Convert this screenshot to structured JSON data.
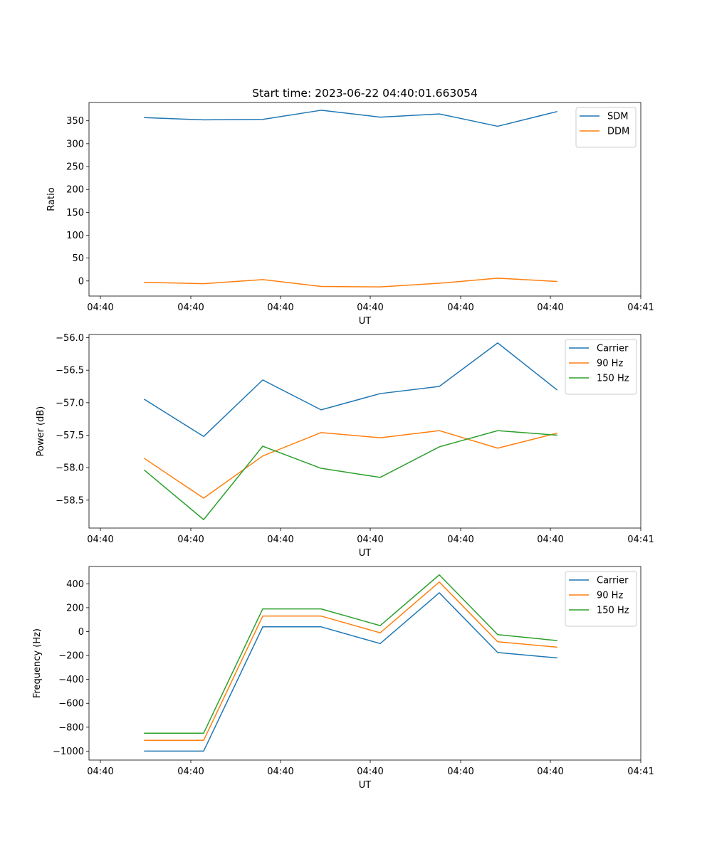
{
  "figure": {
    "title": "Start time: 2023-06-22 04:40:01.663054"
  },
  "chart_data": [
    {
      "type": "line",
      "title": "Start time: 2023-06-22 04:40:01.663054",
      "xlabel": "UT",
      "ylabel": "Ratio",
      "x_tick_labels": [
        "04:40",
        "04:40",
        "04:40",
        "04:40",
        "04:40",
        "04:40",
        "04:40",
        "04:41"
      ],
      "y_ticks": [
        0,
        50,
        100,
        150,
        200,
        250,
        300,
        350
      ],
      "ylim": [
        -33,
        390
      ],
      "grid": false,
      "legend_position": "upper right",
      "series": [
        {
          "name": "SDM",
          "color": "#1f77b4",
          "values": [
            357,
            352,
            353,
            373,
            358,
            365,
            338,
            370
          ]
        },
        {
          "name": "DDM",
          "color": "#ff7f0e",
          "values": [
            -3,
            -6,
            3,
            -12,
            -13,
            -5,
            6,
            -1
          ]
        }
      ]
    },
    {
      "type": "line",
      "title": "",
      "xlabel": "UT",
      "ylabel": "Power (dB)",
      "x_tick_labels": [
        "04:40",
        "04:40",
        "04:40",
        "04:40",
        "04:40",
        "04:40",
        "04:40",
        "04:41"
      ],
      "y_ticks": [
        -58.5,
        -58.0,
        -57.5,
        -57.0,
        -56.5,
        -56.0
      ],
      "y_tick_labels": [
        "−58.5",
        "−58.0",
        "−57.5",
        "−57.0",
        "−56.5",
        "−56.0"
      ],
      "ylim": [
        -58.93,
        -55.95
      ],
      "grid": false,
      "legend_position": "upper right",
      "series": [
        {
          "name": "Carrier",
          "color": "#1f77b4",
          "values": [
            -56.95,
            -57.52,
            -56.65,
            -57.11,
            -56.86,
            -56.75,
            -56.08,
            -56.8
          ]
        },
        {
          "name": "90 Hz",
          "color": "#ff7f0e",
          "values": [
            -57.86,
            -58.47,
            -57.82,
            -57.46,
            -57.54,
            -57.43,
            -57.7,
            -57.47
          ]
        },
        {
          "name": "150 Hz",
          "color": "#2ca02c",
          "values": [
            -58.04,
            -58.8,
            -57.67,
            -58.01,
            -58.15,
            -57.68,
            -57.43,
            -57.5
          ]
        }
      ]
    },
    {
      "type": "line",
      "title": "",
      "xlabel": "UT",
      "ylabel": "Frequency (Hz)",
      "x_tick_labels": [
        "04:40",
        "04:40",
        "04:40",
        "04:40",
        "04:40",
        "04:40",
        "04:40",
        "04:41"
      ],
      "y_ticks": [
        -1000,
        -800,
        -600,
        -400,
        -200,
        0,
        200,
        400
      ],
      "y_tick_labels": [
        "−1000",
        "−800",
        "−600",
        "−400",
        "−200",
        "0",
        "200",
        "400"
      ],
      "ylim": [
        -1075,
        545
      ],
      "grid": false,
      "legend_position": "upper right",
      "series": [
        {
          "name": "Carrier",
          "color": "#1f77b4",
          "values": [
            -1000,
            -1000,
            40,
            40,
            -100,
            325,
            -175,
            -220
          ]
        },
        {
          "name": "90 Hz",
          "color": "#ff7f0e",
          "values": [
            -910,
            -910,
            130,
            130,
            -10,
            415,
            -85,
            -130
          ]
        },
        {
          "name": "150 Hz",
          "color": "#2ca02c",
          "values": [
            -850,
            -850,
            190,
            190,
            50,
            475,
            -25,
            -75
          ]
        }
      ]
    }
  ]
}
